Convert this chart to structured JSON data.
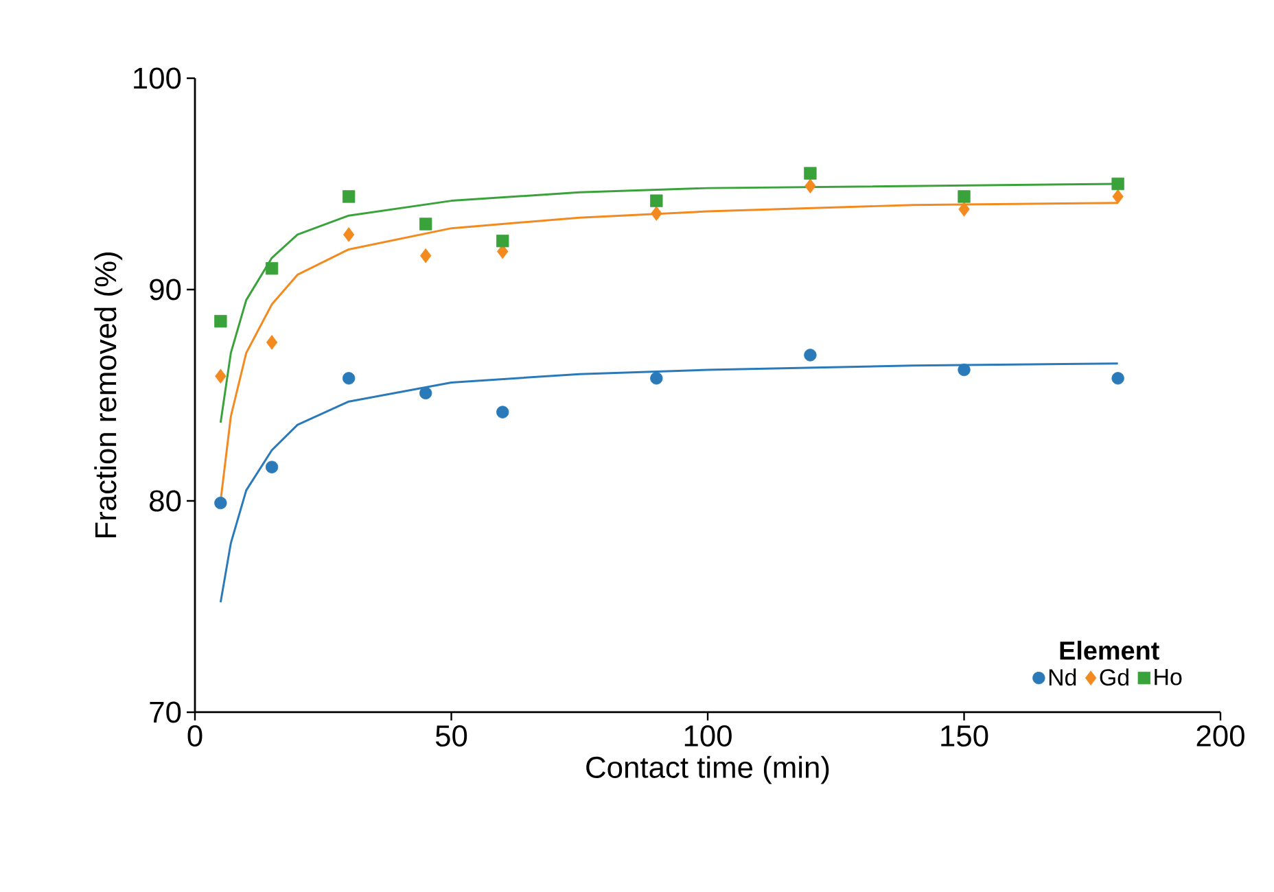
{
  "chart_data": {
    "type": "scatter",
    "xlabel": "Contact time (min)",
    "ylabel": "Fraction removed (%)",
    "legend_title": "Element",
    "legend": "bottom right",
    "grid": false,
    "xlim": [
      0,
      200
    ],
    "xticks": [
      0,
      50,
      100,
      150,
      200
    ],
    "ylim": [
      70,
      100
    ],
    "yticks": [
      70,
      80,
      90,
      100
    ],
    "series": [
      {
        "name": "Nd",
        "marker": "circle",
        "color": "#2a7ab9",
        "x": [
          5,
          15,
          30,
          45,
          60,
          90,
          120,
          150,
          180
        ],
        "values": [
          79.9,
          81.6,
          85.8,
          85.1,
          84.2,
          85.8,
          86.9,
          86.2,
          85.8
        ]
      },
      {
        "name": "Gd",
        "marker": "diamond",
        "color": "#f38a1f",
        "x": [
          5,
          15,
          30,
          45,
          60,
          90,
          120,
          150,
          180
        ],
        "values": [
          85.9,
          87.5,
          92.6,
          91.6,
          91.8,
          93.6,
          94.9,
          93.8,
          94.4
        ]
      },
      {
        "name": "Ho",
        "marker": "square",
        "color": "#3aa23a",
        "x": [
          5,
          15,
          30,
          45,
          60,
          90,
          120,
          150,
          180
        ],
        "values": [
          88.5,
          91.0,
          94.4,
          93.1,
          92.3,
          94.2,
          95.5,
          94.4,
          95.0
        ]
      },
      {
        "type": "line",
        "marker": "none",
        "line_style": "solid",
        "color": "#2a7ab9",
        "x": [
          5,
          7,
          10,
          15,
          20,
          30,
          50,
          75,
          100,
          140,
          180
        ],
        "values": [
          75.2,
          78.0,
          80.5,
          82.4,
          83.6,
          84.7,
          85.6,
          86.0,
          86.2,
          86.4,
          86.5
        ]
      },
      {
        "type": "line",
        "marker": "none",
        "line_style": "solid",
        "color": "#f38a1f",
        "x": [
          5,
          7,
          10,
          15,
          20,
          30,
          50,
          75,
          100,
          140,
          180
        ],
        "values": [
          80.0,
          84.0,
          87.0,
          89.3,
          90.7,
          91.9,
          92.9,
          93.4,
          93.7,
          94.0,
          94.1
        ]
      },
      {
        "type": "line",
        "marker": "none",
        "line_style": "solid",
        "color": "#3aa23a",
        "x": [
          5,
          7,
          10,
          15,
          20,
          30,
          50,
          75,
          100,
          140,
          180
        ],
        "values": [
          83.7,
          87.0,
          89.5,
          91.5,
          92.6,
          93.5,
          94.2,
          94.6,
          94.8,
          94.9,
          95.0
        ]
      }
    ]
  }
}
